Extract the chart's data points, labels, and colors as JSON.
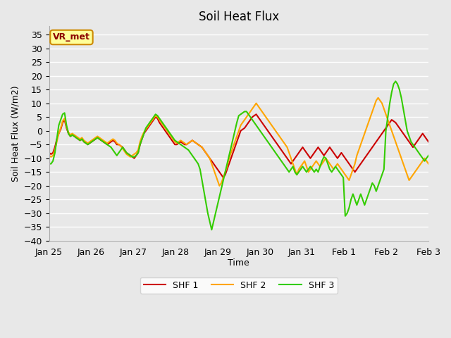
{
  "title": "Soil Heat Flux",
  "ylabel": "Soil Heat Flux (W/m2)",
  "xlabel": "Time",
  "ylim": [
    -40,
    38
  ],
  "yticks": [
    -40,
    -35,
    -30,
    -25,
    -20,
    -15,
    -10,
    -5,
    0,
    5,
    10,
    15,
    20,
    25,
    30,
    35
  ],
  "plot_bg_color": "#e8e8e8",
  "grid_color": "#ffffff",
  "legend_labels": [
    "SHF 1",
    "SHF 2",
    "SHF 3"
  ],
  "line_colors": [
    "#cc0000",
    "#ffa500",
    "#33cc00"
  ],
  "line_width": 1.5,
  "watermark_text": "VR_met",
  "watermark_bg": "#ffff99",
  "watermark_border": "#cc8800",
  "x_start": 0,
  "x_end": 216,
  "x_tick_positions": [
    0,
    24,
    48,
    72,
    96,
    120,
    144,
    168,
    192,
    216
  ],
  "x_tick_labels": [
    "Jan 25",
    "Jan 26",
    "Jan 27",
    "Jan 28",
    "Jan 29",
    "Jan 30",
    "Jan 31",
    "Feb 1",
    "Feb 2",
    "Feb 3"
  ],
  "shf1": [
    -8,
    -8.5,
    -8,
    -6,
    -3,
    -1,
    0.5,
    3,
    4,
    1,
    -1,
    -2,
    -1.5,
    -2,
    -2.5,
    -3,
    -3.5,
    -3,
    -4,
    -4.5,
    -5,
    -4.5,
    -4,
    -3.5,
    -3,
    -2.5,
    -3,
    -3.5,
    -4,
    -4.5,
    -5,
    -4.5,
    -4,
    -3.5,
    -4,
    -5,
    -5,
    -5.5,
    -6,
    -7,
    -8,
    -8.5,
    -9,
    -9.5,
    -10,
    -9,
    -8,
    -5,
    -3,
    -1,
    0,
    1,
    2,
    3,
    4,
    5,
    4.5,
    3,
    2,
    1,
    0,
    -1,
    -2,
    -3,
    -4,
    -5,
    -5,
    -4.5,
    -4,
    -4.5,
    -5,
    -5,
    -4.5,
    -4,
    -3.5,
    -4,
    -4.5,
    -5,
    -5.5,
    -6,
    -7,
    -8,
    -9,
    -10,
    -11,
    -12,
    -13,
    -14,
    -15,
    -16,
    -17,
    -16,
    -14,
    -12,
    -10,
    -8,
    -6,
    -4,
    -2,
    0,
    0.5,
    1,
    2,
    3,
    4,
    5,
    5.5,
    6,
    5,
    4,
    3,
    2,
    1,
    0,
    -1,
    -2,
    -3,
    -4,
    -5,
    -6,
    -7,
    -8,
    -9,
    -10,
    -11,
    -12,
    -11,
    -10,
    -9,
    -8,
    -7,
    -6,
    -7,
    -8,
    -9,
    -10,
    -9,
    -8,
    -7,
    -6,
    -7,
    -8,
    -9,
    -8,
    -7,
    -6,
    -7,
    -8,
    -9,
    -10,
    -9,
    -8,
    -9,
    -10,
    -11,
    -12,
    -13,
    -14,
    -15,
    -14,
    -13,
    -12,
    -11,
    -10,
    -9,
    -8,
    -7,
    -6,
    -5,
    -4,
    -3,
    -2,
    -1,
    0,
    1,
    2,
    3,
    4,
    3.5,
    3,
    2,
    1,
    0,
    -1,
    -2,
    -3,
    -4,
    -5,
    -6,
    -5,
    -4,
    -3,
    -2,
    -1,
    -2,
    -3,
    -4,
    -5,
    -6,
    -7,
    -8,
    -7,
    -6,
    -5,
    -4,
    -5,
    -6,
    -7,
    -8,
    -7,
    -6,
    -5
  ],
  "shf2": [
    -9,
    -9.5,
    -9,
    -7,
    -4,
    -1,
    1,
    3.5,
    4.5,
    1.5,
    -0.5,
    -1.5,
    -1,
    -1.5,
    -2,
    -2.5,
    -3,
    -2.5,
    -3.5,
    -4,
    -4.5,
    -4,
    -3.5,
    -3,
    -2.5,
    -2,
    -2.5,
    -3,
    -3.5,
    -4,
    -4.5,
    -4,
    -3.5,
    -3,
    -3.5,
    -4.5,
    -5,
    -5.5,
    -6.5,
    -7.5,
    -8.5,
    -9,
    -9.5,
    -9,
    -8.5,
    -8,
    -7,
    -4,
    -2,
    -0.5,
    0.5,
    1.5,
    2.5,
    3.5,
    4.5,
    5.5,
    5,
    4,
    3,
    2,
    1,
    0,
    -1,
    -2,
    -3,
    -4,
    -4.5,
    -4,
    -3.5,
    -4,
    -4.5,
    -5,
    -4.5,
    -4,
    -3.5,
    -4,
    -4.5,
    -5,
    -5.5,
    -6,
    -7,
    -8,
    -9,
    -10,
    -12,
    -14,
    -16,
    -18,
    -20,
    -19,
    -17,
    -15,
    -13,
    -10,
    -8,
    -6,
    -4,
    -2,
    0,
    2,
    3,
    4,
    5,
    6,
    7,
    8,
    9,
    10,
    9,
    8,
    7,
    6,
    5,
    4,
    3,
    2,
    1,
    0,
    -1,
    -2,
    -3,
    -4,
    -5,
    -6,
    -8,
    -10,
    -12,
    -14,
    -16,
    -14,
    -13,
    -12,
    -11,
    -13,
    -15,
    -14,
    -13,
    -12,
    -11,
    -12,
    -13,
    -12,
    -11,
    -10,
    -11,
    -12,
    -13,
    -14,
    -13,
    -12,
    -13,
    -14,
    -15,
    -16,
    -17,
    -18,
    -16,
    -14,
    -12,
    -9,
    -7,
    -5,
    -3,
    -1,
    1,
    3,
    5,
    7,
    9,
    11,
    12,
    11,
    10,
    8,
    6,
    4,
    2,
    0,
    -2,
    -4,
    -6,
    -8,
    -10,
    -12,
    -14,
    -16,
    -18,
    -17,
    -16,
    -15,
    -14,
    -13,
    -12,
    -11,
    -10,
    -11,
    -12,
    -11,
    -10,
    -9,
    -10,
    -11,
    -10,
    -9,
    -8,
    -7,
    -6
  ],
  "shf3": [
    -12,
    -12,
    -11,
    -8,
    -3,
    2,
    4,
    6,
    6.5,
    2,
    -1,
    -2,
    -1.5,
    -2,
    -2.5,
    -3,
    -3.5,
    -3,
    -4,
    -4.5,
    -5,
    -4.5,
    -4,
    -3.5,
    -3,
    -2.5,
    -3,
    -3.5,
    -4,
    -4.5,
    -5,
    -5.5,
    -6,
    -7,
    -8,
    -9,
    -8,
    -7,
    -6,
    -7,
    -8,
    -8.5,
    -9,
    -9.5,
    -9.5,
    -9,
    -8,
    -5,
    -3,
    -1,
    1,
    2,
    3,
    4,
    5,
    6,
    5.5,
    4.5,
    3.5,
    2.5,
    1.5,
    0.5,
    -0.5,
    -1.5,
    -2.5,
    -3.5,
    -4,
    -4.5,
    -5,
    -5.5,
    -6,
    -6.5,
    -7,
    -8,
    -9,
    -10,
    -11,
    -12,
    -14,
    -18,
    -22,
    -26,
    -30,
    -33,
    -36,
    -33,
    -30,
    -27,
    -24,
    -21,
    -18,
    -15,
    -12,
    -9,
    -6,
    -3,
    0,
    3,
    5.5,
    6,
    6.5,
    7,
    7,
    6,
    5,
    4,
    3,
    2,
    1,
    0,
    -1,
    -2,
    -3,
    -4,
    -5,
    -6,
    -7,
    -8,
    -9,
    -10,
    -11,
    -12,
    -13,
    -14,
    -15,
    -14,
    -13,
    -15,
    -16,
    -15,
    -14,
    -13,
    -14,
    -15,
    -14,
    -13,
    -14,
    -15,
    -14,
    -15,
    -13,
    -11,
    -9.5,
    -10,
    -12,
    -14,
    -15,
    -14,
    -13,
    -14,
    -15,
    -16,
    -17,
    -31,
    -30,
    -28,
    -25,
    -23,
    -25,
    -27,
    -25,
    -23,
    -25,
    -27,
    -25,
    -23,
    -21,
    -19,
    -20,
    -22,
    -20,
    -18,
    -16,
    -14,
    0,
    5,
    10,
    14,
    17,
    18,
    17,
    15,
    12,
    8,
    4,
    0,
    -2,
    -4,
    -5,
    -6,
    -7,
    -8,
    -9,
    -10,
    -11,
    -10,
    -9
  ]
}
